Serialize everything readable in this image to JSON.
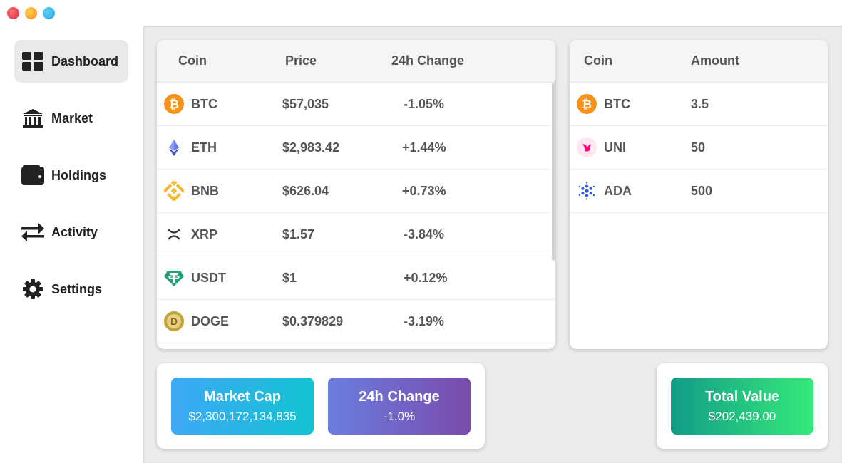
{
  "sidebar": {
    "items": [
      {
        "label": "Dashboard",
        "icon": "dashboard-grid-icon",
        "active": true
      },
      {
        "label": "Market",
        "icon": "bank-icon"
      },
      {
        "label": "Holdings",
        "icon": "wallet-icon"
      },
      {
        "label": "Activity",
        "icon": "exchange-arrows-icon"
      },
      {
        "label": "Settings",
        "icon": "gear-icon"
      }
    ]
  },
  "market_table": {
    "headers": {
      "coin": "Coin",
      "price": "Price",
      "change": "24h Change"
    },
    "rows": [
      {
        "coin": "BTC",
        "price": "$57,035",
        "change": "-1.05%",
        "icon": "bitcoin-icon"
      },
      {
        "coin": "ETH",
        "price": "$2,983.42",
        "change": "+1.44%",
        "icon": "ethereum-icon"
      },
      {
        "coin": "BNB",
        "price": "$626.04",
        "change": "+0.73%",
        "icon": "bnb-icon"
      },
      {
        "coin": "XRP",
        "price": "$1.57",
        "change": "-3.84%",
        "icon": "xrp-icon"
      },
      {
        "coin": "USDT",
        "price": "$1",
        "change": "+0.12%",
        "icon": "tether-icon"
      },
      {
        "coin": "DOGE",
        "price": "$0.379829",
        "change": "-3.19%",
        "icon": "dogecoin-icon"
      }
    ]
  },
  "holdings_table": {
    "headers": {
      "coin": "Coin",
      "amount": "Amount"
    },
    "rows": [
      {
        "coin": "BTC",
        "amount": "3.5",
        "icon": "bitcoin-icon"
      },
      {
        "coin": "UNI",
        "amount": "50",
        "icon": "uniswap-icon"
      },
      {
        "coin": "ADA",
        "amount": "500",
        "icon": "cardano-icon"
      }
    ]
  },
  "stats": {
    "market_cap": {
      "title": "Market Cap",
      "value": "$2,300,172,134,835"
    },
    "change": {
      "title": "24h Change",
      "value": "-1.0%"
    },
    "total_value": {
      "title": "Total Value",
      "value": "$202,439.00"
    }
  },
  "colors": {
    "market_cap_gradient": [
      "#3ea8f5",
      "#13c3d2"
    ],
    "change_gradient": [
      "#6a7ee0",
      "#7a4bab"
    ],
    "total_gradient": [
      "#119d88",
      "#35ea7a"
    ]
  }
}
